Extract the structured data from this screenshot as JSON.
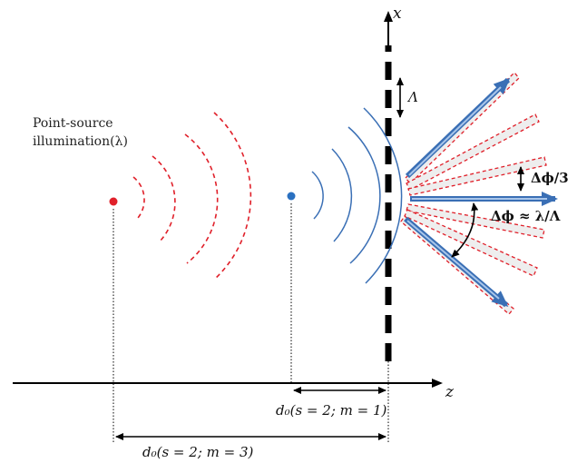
{
  "labels": {
    "x_axis": "x",
    "z_axis": "z",
    "period": "Λ",
    "source_line1": "Point-source",
    "source_line2": "illumination(λ)",
    "delta_phi_third": "Δϕ/3",
    "delta_phi": "Δϕ ≈ λ/Λ",
    "d0_m1": "d₀(s = 2; m = 1)",
    "d0_m3": "d₀(s = 2; m = 3)"
  },
  "colors": {
    "red": "#e0202a",
    "blue": "#3a6fb5",
    "blue_light": "#6a9bd6",
    "black": "#000000",
    "grey_fill": "#dcdcdc"
  }
}
